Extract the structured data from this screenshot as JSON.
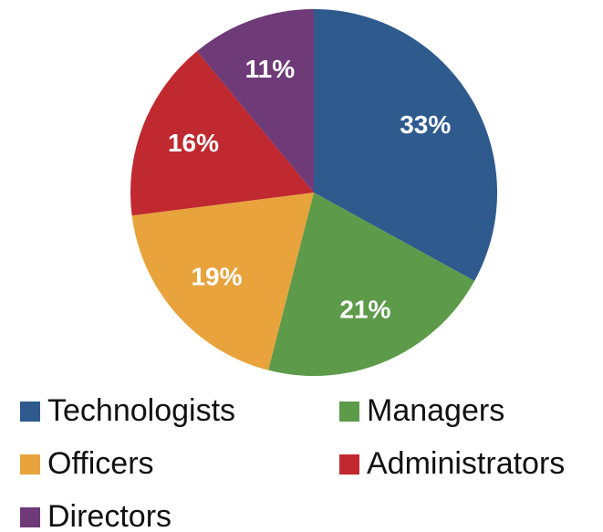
{
  "chart_data": {
    "type": "pie",
    "categories": [
      "Technologists",
      "Managers",
      "Officers",
      "Administrators",
      "Directors"
    ],
    "values": [
      33,
      21,
      19,
      16,
      11
    ],
    "value_labels": [
      "33%",
      "21%",
      "19%",
      "16%",
      "11%"
    ],
    "colors": [
      "#2e5a8e",
      "#5d9a4a",
      "#e8a33d",
      "#c0292f",
      "#6e3b78"
    ],
    "legend": "bottom"
  }
}
